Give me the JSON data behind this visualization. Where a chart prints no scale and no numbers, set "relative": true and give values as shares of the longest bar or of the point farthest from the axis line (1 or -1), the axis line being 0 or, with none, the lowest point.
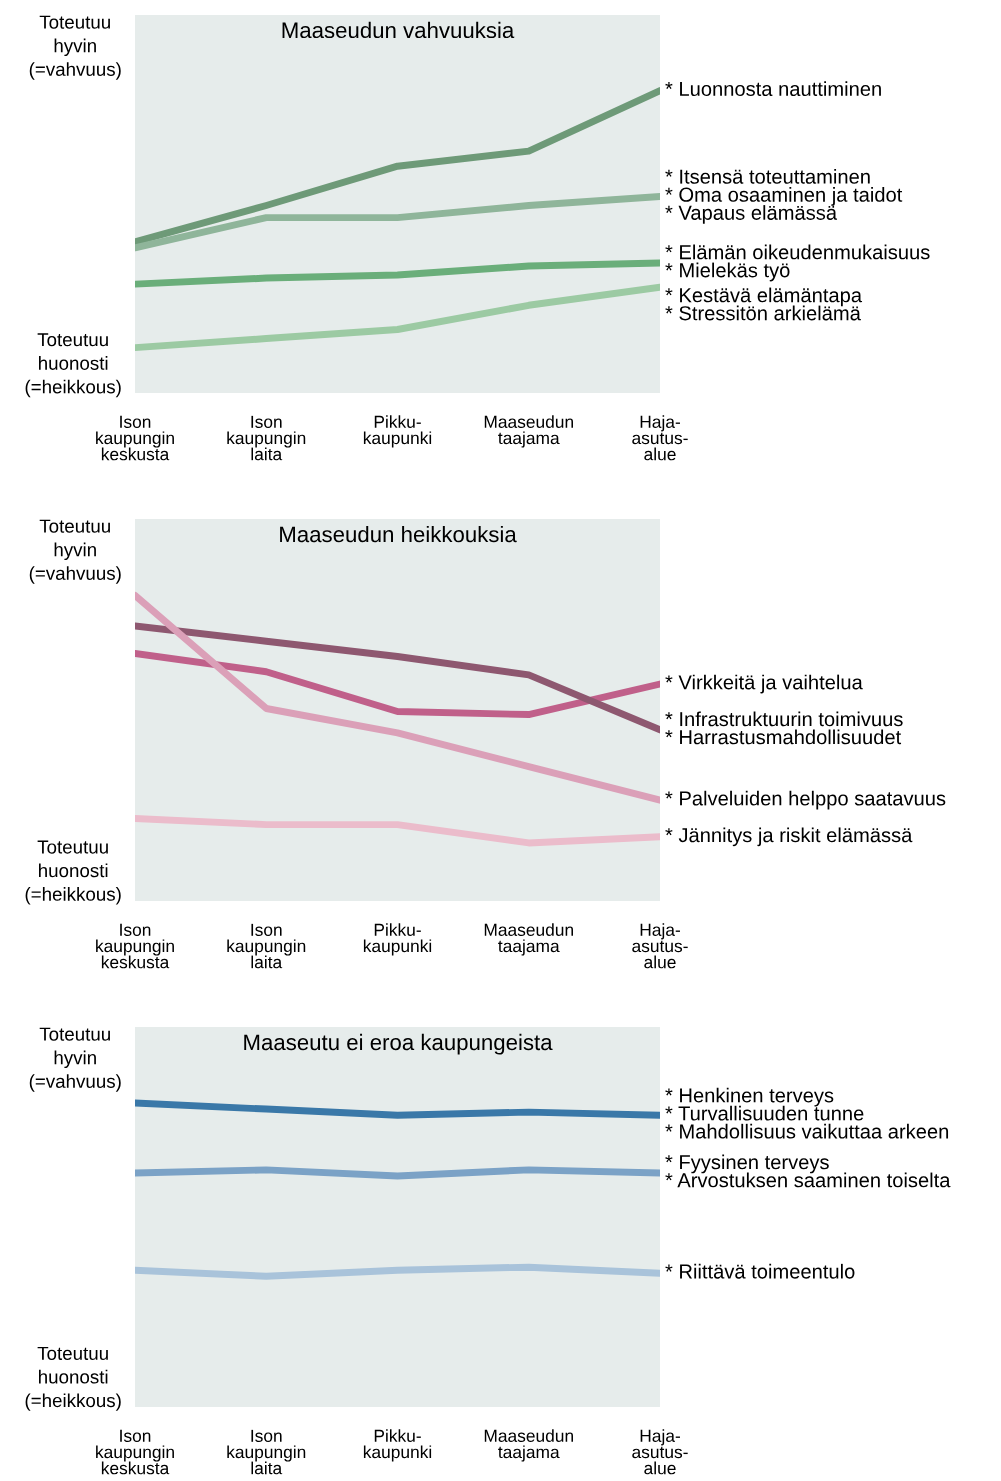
{
  "chart_data": [
    {
      "type": "line",
      "title": "Maaseudun vahvuuksia",
      "relative": true,
      "categories": [
        "Ison\nkaupungin\nkeskusta",
        "Ison\nkaupungin\nlaita",
        "Pikku-\nkaupunki",
        "Maaseudun\ntaajama",
        "Haja-\nasutus-\nalue"
      ],
      "annotations": [
        "Toteutuu\nhyvin\n(=vahvuus)",
        "Toteutuu\nhuonosti\n(=heikkous)"
      ],
      "grid": false,
      "legend": false,
      "marker": "none",
      "line_style": "solid",
      "series": [
        {
          "name": "* Luonnosta nauttiminen",
          "color": "#6e9a78",
          "values": [
            0.5,
            0.62,
            0.75,
            0.8,
            1.0
          ]
        },
        {
          "name": "* Itsensä toteuttaminen\n* Oma osaaminen ja taidot\n* Vapaus elämässä",
          "color": "#8fb59a",
          "values": [
            0.48,
            0.58,
            0.58,
            0.62,
            0.65
          ]
        },
        {
          "name": "* Elämän oikeudenmukaisuus\n* Mielekäs työ",
          "color": "#6aae7a",
          "values": [
            0.36,
            0.38,
            0.39,
            0.42,
            0.43
          ]
        },
        {
          "name": "* Kestävä elämäntapa\n* Stressitön arkielämä",
          "color": "#9ccaa3",
          "values": [
            0.15,
            0.18,
            0.21,
            0.29,
            0.35
          ]
        }
      ]
    },
    {
      "type": "line",
      "title": "Maaseudun heikkouksia",
      "relative": true,
      "categories": [
        "Ison\nkaupungin\nkeskusta",
        "Ison\nkaupungin\nlaita",
        "Pikku-\nkaupunki",
        "Maaseudun\ntaajama",
        "Haja-\nasutus-\nalue"
      ],
      "annotations": [
        "Toteutuu\nhyvin\n(=vahvuus)",
        "Toteutuu\nhuonosti\n(=heikkous)"
      ],
      "grid": false,
      "legend": false,
      "marker": "none",
      "line_style": "solid",
      "series": [
        {
          "name": "* Virkkeitä ja vaihtelua",
          "color": "#c0608a",
          "values": [
            0.81,
            0.75,
            0.62,
            0.61,
            0.71
          ]
        },
        {
          "name": "* Infrastruktuurin toimivuus\n* Harrastusmahdollisuudet",
          "color": "#8e5870",
          "values": [
            0.9,
            0.85,
            0.8,
            0.74,
            0.56
          ]
        },
        {
          "name": "* Palveluiden helppo saatavuus",
          "color": "#dba0b8",
          "values": [
            1.0,
            0.63,
            0.55,
            0.44,
            0.33
          ]
        },
        {
          "name": "* Jännitys ja riskit elämässä",
          "color": "#ebbccb",
          "values": [
            0.27,
            0.25,
            0.25,
            0.19,
            0.21
          ]
        }
      ]
    },
    {
      "type": "line",
      "title": "Maaseutu ei eroa kaupungeista",
      "relative": true,
      "categories": [
        "Ison\nkaupungin\nkeskusta",
        "Ison\nkaupungin\nlaita",
        "Pikku-\nkaupunki",
        "Maaseudun\ntaajama",
        "Haja-\nasutus-\nalue"
      ],
      "annotations": [
        "Toteutuu\nhyvin\n(=vahvuus)",
        "Toteutuu\nhuonosti\n(=heikkous)"
      ],
      "grid": false,
      "legend": false,
      "marker": "none",
      "line_style": "solid",
      "series": [
        {
          "name": "* Henkinen terveys\n* Turvallisuuden tunne\n* Mahdollisuus vaikuttaa arkeen",
          "color": "#3a78a8",
          "values": [
            1.0,
            0.98,
            0.96,
            0.97,
            0.96
          ]
        },
        {
          "name": "* Fyysinen terveys\n* Arvostuksen saaminen toiselta",
          "color": "#7ba2c6",
          "values": [
            0.77,
            0.78,
            0.76,
            0.78,
            0.77
          ]
        },
        {
          "name": "* Riittävä toimeentulo",
          "color": "#a9c3da",
          "values": [
            0.45,
            0.43,
            0.45,
            0.46,
            0.44
          ]
        }
      ]
    }
  ]
}
